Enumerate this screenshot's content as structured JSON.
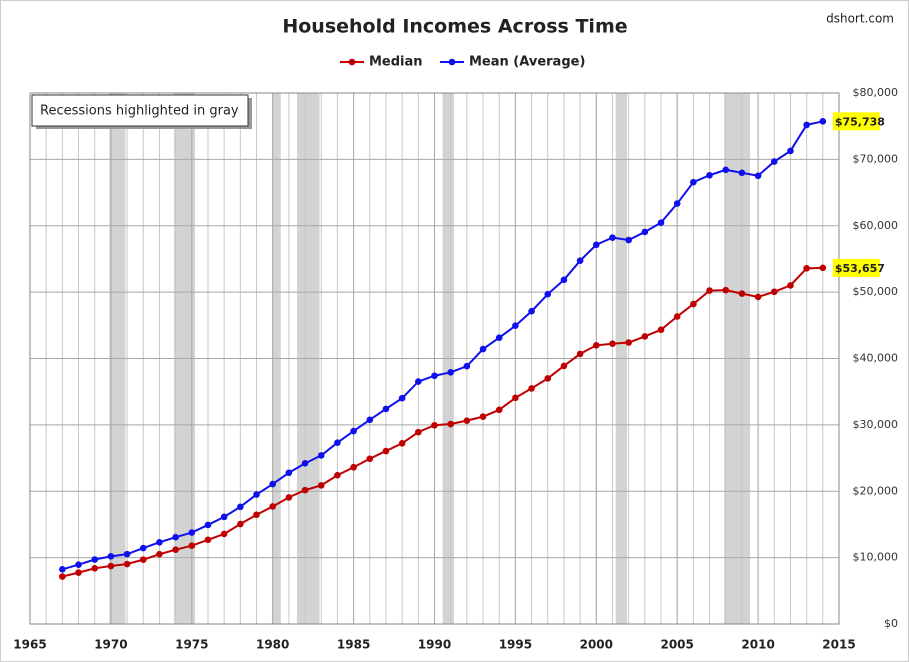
{
  "chart_data": {
    "type": "line",
    "title": "Household Incomes Across Time",
    "source": "dshort.com",
    "annotation": "Recessions highlighted in gray",
    "x": [
      1967,
      1968,
      1969,
      1970,
      1971,
      1972,
      1973,
      1974,
      1975,
      1976,
      1977,
      1978,
      1979,
      1980,
      1981,
      1982,
      1983,
      1984,
      1985,
      1986,
      1987,
      1988,
      1989,
      1990,
      1991,
      1992,
      1993,
      1994,
      1995,
      1996,
      1997,
      1998,
      1999,
      2000,
      2001,
      2002,
      2003,
      2004,
      2005,
      2006,
      2007,
      2008,
      2009,
      2010,
      2011,
      2012,
      2013,
      2014
    ],
    "series": [
      {
        "name": "Median",
        "color": "#c00000",
        "values": [
          7143,
          7743,
          8389,
          8734,
          9028,
          9697,
          10512,
          11197,
          11800,
          12686,
          13572,
          15064,
          16461,
          17710,
          19074,
          20171,
          20885,
          22415,
          23618,
          24897,
          26061,
          27225,
          28906,
          29943,
          30126,
          30636,
          31241,
          32264,
          34076,
          35492,
          37005,
          38885,
          40696,
          41990,
          42228,
          42409,
          43318,
          44334,
          46326,
          48201,
          50233,
          50303,
          49777,
          49276,
          50054,
          51017,
          53585,
          53657
        ],
        "value_labels": [
          null,
          null,
          null,
          null,
          null,
          null,
          null,
          null,
          null,
          null,
          null,
          null,
          null,
          null,
          null,
          null,
          null,
          null,
          null,
          null,
          null,
          null,
          null,
          null,
          null,
          null,
          null,
          null,
          null,
          null,
          null,
          null,
          null,
          null,
          null,
          null,
          null,
          null,
          null,
          null,
          null,
          null,
          null,
          null,
          null,
          null,
          null,
          "$53,657"
        ]
      },
      {
        "name": "Mean (Average)",
        "color": "#1010ee",
        "values": [
          8234,
          8937,
          9719,
          10193,
          10529,
          11441,
          12302,
          13082,
          13779,
          14922,
          16142,
          17649,
          19506,
          21081,
          22786,
          24207,
          25394,
          27312,
          29062,
          30759,
          32410,
          34017,
          36520,
          37403,
          37922,
          38840,
          41428,
          43133,
          44938,
          47123,
          49692,
          51855,
          54737,
          57135,
          58208,
          57852,
          59067,
          60466,
          63344,
          66570,
          67609,
          68424,
          67976,
          67530,
          69677,
          71274,
          75195,
          75738
        ],
        "value_labels": [
          null,
          null,
          null,
          null,
          null,
          null,
          null,
          null,
          null,
          null,
          null,
          null,
          null,
          null,
          null,
          null,
          null,
          null,
          null,
          null,
          null,
          null,
          null,
          null,
          null,
          null,
          null,
          null,
          null,
          null,
          null,
          null,
          null,
          null,
          null,
          null,
          null,
          null,
          null,
          null,
          null,
          null,
          null,
          null,
          null,
          null,
          null,
          "$75,738"
        ]
      }
    ],
    "recessions": [
      [
        1969.9,
        1970.9
      ],
      [
        1973.9,
        1975.2
      ],
      [
        1980.0,
        1980.5
      ],
      [
        1981.5,
        1982.9
      ],
      [
        1990.5,
        1991.2
      ],
      [
        2001.2,
        2001.9
      ],
      [
        2007.9,
        2009.5
      ]
    ],
    "recession_color": "#d3d3d3",
    "xlim": [
      1965,
      2015
    ],
    "xticks": [
      1965,
      1970,
      1975,
      1980,
      1985,
      1990,
      1995,
      2000,
      2005,
      2010,
      2015
    ],
    "ylim": [
      0,
      80000
    ],
    "yticks": [
      {
        "value": 0,
        "label": "$0"
      },
      {
        "value": 10000,
        "label": "$10,000"
      },
      {
        "value": 20000,
        "label": "$20,000"
      },
      {
        "value": 30000,
        "label": "$30,000"
      },
      {
        "value": 40000,
        "label": "$40,000"
      },
      {
        "value": 50000,
        "label": "$50,000"
      },
      {
        "value": 60000,
        "label": "$60,000"
      },
      {
        "value": 70000,
        "label": "$70,000"
      },
      {
        "value": 80000,
        "label": "$80,000"
      }
    ],
    "y_axis_side": "right",
    "grid": true,
    "end_label_color": "#ffff00"
  }
}
